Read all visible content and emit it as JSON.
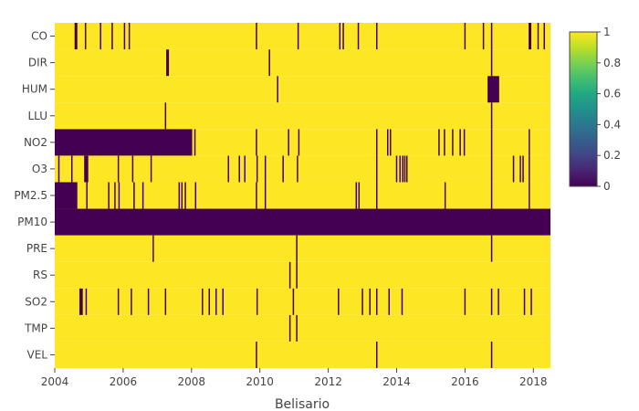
{
  "chart_data": {
    "type": "heatmap",
    "title": "",
    "xlabel": "Belisario",
    "ylabel": "",
    "x_range": [
      2004.0,
      2018.5
    ],
    "x_ticks": [
      "2004",
      "2006",
      "2008",
      "2010",
      "2012",
      "2014",
      "2016",
      "2018"
    ],
    "z_range": [
      0,
      1
    ],
    "colorscale": "viridis",
    "colorbar_ticks": [
      "0",
      "0.2",
      "0.4",
      "0.6",
      "0.8",
      "1"
    ],
    "default_value": 1,
    "rows": [
      {
        "name": "VEL",
        "zero_spans": [
          [
            2009.88,
            2009.92
          ],
          [
            2013.4,
            2013.44
          ],
          [
            2016.76,
            2016.8
          ]
        ]
      },
      {
        "name": "TMP",
        "zero_spans": [
          [
            2010.86,
            2010.9
          ],
          [
            2011.06,
            2011.1
          ]
        ]
      },
      {
        "name": "SO2",
        "zero_spans": [
          [
            2004.72,
            2004.82
          ],
          [
            2004.9,
            2004.94
          ],
          [
            2005.84,
            2005.88
          ],
          [
            2006.22,
            2006.26
          ],
          [
            2006.72,
            2006.76
          ],
          [
            2007.22,
            2007.26
          ],
          [
            2008.3,
            2008.34
          ],
          [
            2008.5,
            2008.54
          ],
          [
            2008.7,
            2008.74
          ],
          [
            2008.9,
            2008.94
          ],
          [
            2009.9,
            2009.94
          ],
          [
            2010.96,
            2011.0
          ],
          [
            2012.28,
            2012.32
          ],
          [
            2012.98,
            2013.02
          ],
          [
            2013.2,
            2013.24
          ],
          [
            2013.4,
            2013.44
          ],
          [
            2013.76,
            2013.8
          ],
          [
            2014.14,
            2014.18
          ],
          [
            2015.98,
            2016.02
          ],
          [
            2016.76,
            2016.8
          ],
          [
            2016.96,
            2017.0
          ],
          [
            2017.72,
            2017.76
          ],
          [
            2017.92,
            2017.96
          ]
        ]
      },
      {
        "name": "RS",
        "zero_spans": [
          [
            2010.86,
            2010.9
          ],
          [
            2011.06,
            2011.1
          ]
        ]
      },
      {
        "name": "PRE",
        "zero_spans": [
          [
            2006.86,
            2006.9
          ],
          [
            2011.06,
            2011.1
          ],
          [
            2016.76,
            2016.8
          ]
        ]
      },
      {
        "name": "PM10",
        "zero_spans": [
          [
            2004.0,
            2018.5
          ]
        ]
      },
      {
        "name": "PM2.5",
        "zero_spans": [
          [
            2004.0,
            2004.66
          ],
          [
            2004.92,
            2004.96
          ],
          [
            2005.56,
            2005.6
          ],
          [
            2005.74,
            2005.78
          ],
          [
            2005.86,
            2005.9
          ],
          [
            2006.3,
            2006.34
          ],
          [
            2006.56,
            2006.6
          ],
          [
            2007.62,
            2007.66
          ],
          [
            2007.7,
            2007.74
          ],
          [
            2007.8,
            2007.84
          ],
          [
            2008.1,
            2008.14
          ],
          [
            2009.88,
            2009.92
          ],
          [
            2010.14,
            2010.18
          ],
          [
            2012.8,
            2012.84
          ],
          [
            2012.88,
            2012.92
          ],
          [
            2013.4,
            2013.44
          ],
          [
            2015.4,
            2015.44
          ],
          [
            2016.76,
            2016.8
          ],
          [
            2017.86,
            2017.9
          ]
        ]
      },
      {
        "name": "O3",
        "zero_spans": [
          [
            2004.1,
            2004.14
          ],
          [
            2004.48,
            2004.52
          ],
          [
            2004.86,
            2004.98
          ],
          [
            2005.84,
            2005.88
          ],
          [
            2006.26,
            2006.3
          ],
          [
            2006.8,
            2006.84
          ],
          [
            2009.06,
            2009.1
          ],
          [
            2009.38,
            2009.42
          ],
          [
            2009.54,
            2009.58
          ],
          [
            2009.9,
            2009.94
          ],
          [
            2010.14,
            2010.18
          ],
          [
            2010.66,
            2010.7
          ],
          [
            2011.08,
            2011.12
          ],
          [
            2013.4,
            2013.44
          ],
          [
            2013.98,
            2014.02
          ],
          [
            2014.08,
            2014.12
          ],
          [
            2014.16,
            2014.2
          ],
          [
            2014.22,
            2014.26
          ],
          [
            2014.28,
            2014.32
          ],
          [
            2016.76,
            2016.8
          ],
          [
            2017.4,
            2017.44
          ],
          [
            2017.6,
            2017.64
          ],
          [
            2017.68,
            2017.72
          ],
          [
            2017.86,
            2017.9
          ]
        ]
      },
      {
        "name": "NO2",
        "zero_spans": [
          [
            2004.0,
            2008.02
          ],
          [
            2008.08,
            2008.12
          ],
          [
            2009.88,
            2009.92
          ],
          [
            2010.82,
            2010.86
          ],
          [
            2011.12,
            2011.16
          ],
          [
            2013.4,
            2013.44
          ],
          [
            2013.72,
            2013.76
          ],
          [
            2013.8,
            2013.84
          ],
          [
            2015.22,
            2015.26
          ],
          [
            2015.38,
            2015.42
          ],
          [
            2015.62,
            2015.66
          ],
          [
            2015.84,
            2015.88
          ],
          [
            2015.96,
            2016.0
          ],
          [
            2016.76,
            2016.8
          ],
          [
            2017.86,
            2017.9
          ]
        ]
      },
      {
        "name": "LLU",
        "zero_spans": [
          [
            2007.22,
            2007.26
          ],
          [
            2016.76,
            2016.8
          ]
        ]
      },
      {
        "name": "HUM",
        "zero_spans": [
          [
            2010.5,
            2010.54
          ],
          [
            2016.66,
            2017.0
          ]
        ]
      },
      {
        "name": "DIR",
        "zero_spans": [
          [
            2007.26,
            2007.34
          ],
          [
            2010.26,
            2010.3
          ],
          [
            2016.76,
            2016.8
          ]
        ]
      },
      {
        "name": "CO",
        "zero_spans": [
          [
            2004.58,
            2004.66
          ],
          [
            2004.88,
            2004.92
          ],
          [
            2005.32,
            2005.36
          ],
          [
            2005.66,
            2005.7
          ],
          [
            2006.02,
            2006.06
          ],
          [
            2006.16,
            2006.2
          ],
          [
            2009.88,
            2009.92
          ],
          [
            2011.1,
            2011.14
          ],
          [
            2012.32,
            2012.36
          ],
          [
            2012.42,
            2012.46
          ],
          [
            2012.86,
            2012.9
          ],
          [
            2013.4,
            2013.44
          ],
          [
            2015.98,
            2016.02
          ],
          [
            2016.52,
            2016.56
          ],
          [
            2016.76,
            2016.8
          ],
          [
            2017.86,
            2017.94
          ],
          [
            2018.12,
            2018.16
          ],
          [
            2018.3,
            2018.34
          ]
        ]
      }
    ]
  }
}
